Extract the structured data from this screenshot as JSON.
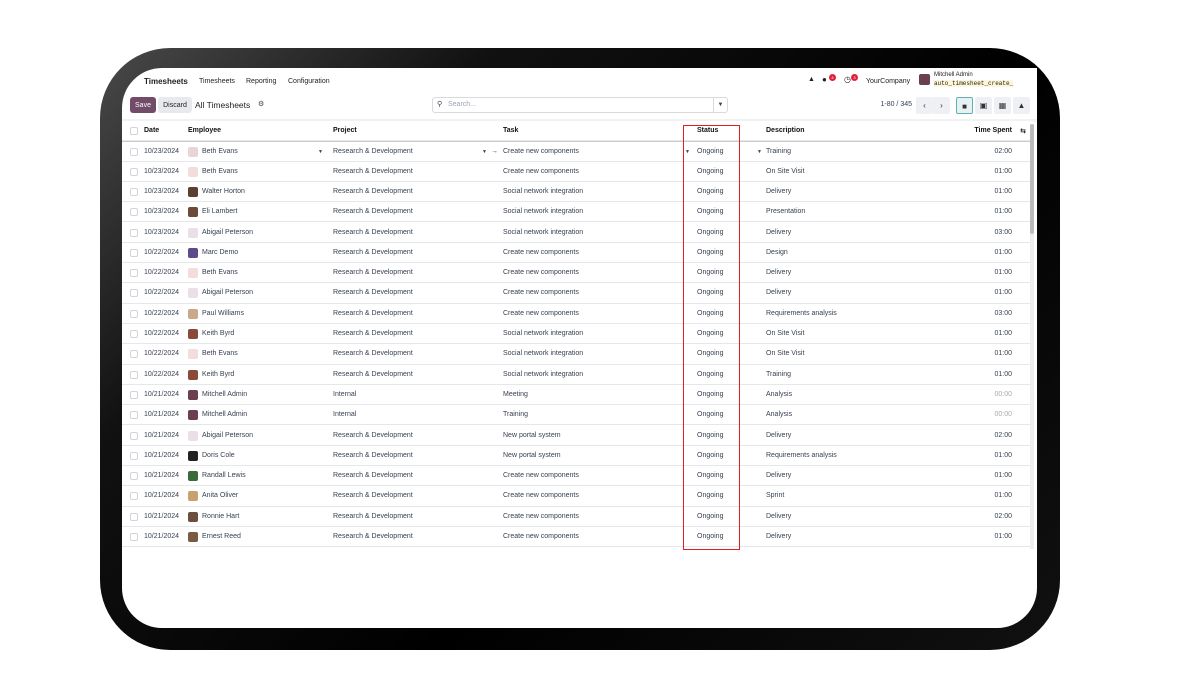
{
  "nav": {
    "app": "Timesheets",
    "menus": [
      "Timesheets",
      "Reporting",
      "Configuration"
    ],
    "company": "YourCompany",
    "user": "Mitchell Admin",
    "db": "auto_timesheet_create_",
    "chat_count": "4",
    "activity_count": "3"
  },
  "toolbar": {
    "save": "Save",
    "discard": "Discard",
    "view_title": "All Timesheets",
    "search_placeholder": "Search...",
    "pager": "1-80 / 345"
  },
  "columns": {
    "date": "Date",
    "employee": "Employee",
    "project": "Project",
    "task": "Task",
    "status": "Status",
    "description": "Description",
    "time": "Time Spent"
  },
  "rows": [
    {
      "date": "10/23/2024",
      "employee": "Beth Evans",
      "project": "Research & Development",
      "task": "Create new components",
      "status": "Ongoing",
      "description": "Training",
      "time": "02:00"
    },
    {
      "date": "10/23/2024",
      "employee": "Beth Evans",
      "project": "Research & Development",
      "task": "Create new components",
      "status": "Ongoing",
      "description": "On Site Visit",
      "time": "01:00"
    },
    {
      "date": "10/23/2024",
      "employee": "Walter Horton",
      "project": "Research & Development",
      "task": "Social network integration",
      "status": "Ongoing",
      "description": "Delivery",
      "time": "01:00"
    },
    {
      "date": "10/23/2024",
      "employee": "Eli Lambert",
      "project": "Research & Development",
      "task": "Social network integration",
      "status": "Ongoing",
      "description": "Presentation",
      "time": "01:00"
    },
    {
      "date": "10/23/2024",
      "employee": "Abigail Peterson",
      "project": "Research & Development",
      "task": "Social network integration",
      "status": "Ongoing",
      "description": "Delivery",
      "time": "03:00"
    },
    {
      "date": "10/22/2024",
      "employee": "Marc Demo",
      "project": "Research & Development",
      "task": "Create new components",
      "status": "Ongoing",
      "description": "Design",
      "time": "01:00"
    },
    {
      "date": "10/22/2024",
      "employee": "Beth Evans",
      "project": "Research & Development",
      "task": "Create new components",
      "status": "Ongoing",
      "description": "Delivery",
      "time": "01:00"
    },
    {
      "date": "10/22/2024",
      "employee": "Abigail Peterson",
      "project": "Research & Development",
      "task": "Create new components",
      "status": "Ongoing",
      "description": "Delivery",
      "time": "01:00"
    },
    {
      "date": "10/22/2024",
      "employee": "Paul Williams",
      "project": "Research & Development",
      "task": "Create new components",
      "status": "Ongoing",
      "description": "Requirements analysis",
      "time": "03:00"
    },
    {
      "date": "10/22/2024",
      "employee": "Keith Byrd",
      "project": "Research & Development",
      "task": "Social network integration",
      "status": "Ongoing",
      "description": "On Site Visit",
      "time": "01:00"
    },
    {
      "date": "10/22/2024",
      "employee": "Beth Evans",
      "project": "Research & Development",
      "task": "Social network integration",
      "status": "Ongoing",
      "description": "On Site Visit",
      "time": "01:00"
    },
    {
      "date": "10/22/2024",
      "employee": "Keith Byrd",
      "project": "Research & Development",
      "task": "Social network integration",
      "status": "Ongoing",
      "description": "Training",
      "time": "01:00"
    },
    {
      "date": "10/21/2024",
      "employee": "Mitchell Admin",
      "project": "Internal",
      "task": "Meeting",
      "status": "Ongoing",
      "description": "Analysis",
      "time": "00:00"
    },
    {
      "date": "10/21/2024",
      "employee": "Mitchell Admin",
      "project": "Internal",
      "task": "Training",
      "status": "Ongoing",
      "description": "Analysis",
      "time": "00:00"
    },
    {
      "date": "10/21/2024",
      "employee": "Abigail Peterson",
      "project": "Research & Development",
      "task": "New portal system",
      "status": "Ongoing",
      "description": "Delivery",
      "time": "02:00"
    },
    {
      "date": "10/21/2024",
      "employee": "Doris Cole",
      "project": "Research & Development",
      "task": "New portal system",
      "status": "Ongoing",
      "description": "Requirements analysis",
      "time": "01:00"
    },
    {
      "date": "10/21/2024",
      "employee": "Randall Lewis",
      "project": "Research & Development",
      "task": "Create new components",
      "status": "Ongoing",
      "description": "Delivery",
      "time": "01:00"
    },
    {
      "date": "10/21/2024",
      "employee": "Anita Oliver",
      "project": "Research & Development",
      "task": "Create new components",
      "status": "Ongoing",
      "description": "Sprint",
      "time": "01:00"
    },
    {
      "date": "10/21/2024",
      "employee": "Ronnie Hart",
      "project": "Research & Development",
      "task": "Create new components",
      "status": "Ongoing",
      "description": "Delivery",
      "time": "02:00"
    },
    {
      "date": "10/21/2024",
      "employee": "Ernest Reed",
      "project": "Research & Development",
      "task": "Create new components",
      "status": "Ongoing",
      "description": "Delivery",
      "time": "01:00"
    }
  ],
  "colors": {
    "primary": "#714B67",
    "highlight": "#e02020"
  }
}
